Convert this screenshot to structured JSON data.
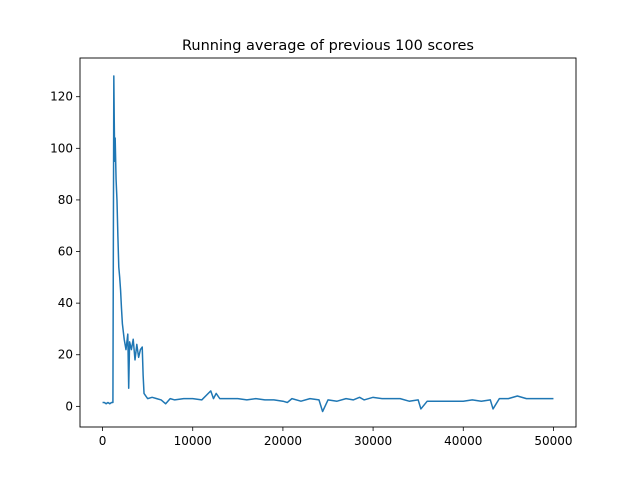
{
  "chart_data": {
    "type": "line",
    "title": "Running average of previous 100 scores",
    "xlabel": "",
    "ylabel": "",
    "xlim": [
      -2500,
      52500
    ],
    "ylim": [
      -8,
      135
    ],
    "x_ticks": [
      0,
      10000,
      20000,
      30000,
      40000,
      50000
    ],
    "x_tick_labels": [
      "0",
      "10000",
      "20000",
      "30000",
      "40000",
      "50000"
    ],
    "y_ticks": [
      0,
      20,
      40,
      60,
      80,
      100,
      120
    ],
    "y_tick_labels": [
      "0",
      "20",
      "40",
      "60",
      "80",
      "100",
      "120"
    ],
    "grid": false,
    "series": [
      {
        "color": "#1f77b4",
        "x": [
          0,
          200,
          400,
          600,
          800,
          1000,
          1150,
          1250,
          1300,
          1350,
          1400,
          1500,
          1600,
          1700,
          1800,
          1900,
          2000,
          2100,
          2200,
          2400,
          2600,
          2800,
          2900,
          3000,
          3200,
          3400,
          3600,
          3800,
          4000,
          4200,
          4400,
          4500,
          4600,
          4800,
          5000,
          5500,
          6000,
          6500,
          7000,
          7500,
          8000,
          9000,
          10000,
          11000,
          12000,
          12300,
          12600,
          13000,
          14000,
          15000,
          16000,
          17000,
          18000,
          19000,
          20000,
          20500,
          21000,
          22000,
          23000,
          24000,
          24400,
          25000,
          26000,
          27000,
          27800,
          28500,
          29000,
          30000,
          31000,
          32000,
          33000,
          34000,
          35000,
          35300,
          36000,
          37000,
          38000,
          39000,
          40000,
          41000,
          42000,
          43000,
          43300,
          44000,
          45000,
          46000,
          47000,
          48000,
          49000,
          50000
        ],
        "y": [
          1.5,
          1.5,
          1.0,
          1.5,
          1.0,
          1.5,
          1.5,
          128,
          110,
          95,
          104,
          88,
          80,
          66,
          54,
          50,
          45,
          38,
          32,
          26,
          22,
          28,
          7,
          25,
          22,
          26,
          18,
          24,
          19,
          22,
          23,
          12,
          5,
          4,
          3,
          3.5,
          3,
          2.5,
          1,
          3,
          2.5,
          3,
          3,
          2.5,
          6,
          3,
          5,
          3,
          3,
          3,
          2.5,
          3,
          2.5,
          2.5,
          2,
          1.5,
          3,
          2,
          3,
          2.5,
          -2,
          2.5,
          2,
          3,
          2.5,
          3.5,
          2.5,
          3.5,
          3,
          3,
          3,
          2,
          2.5,
          -1,
          2,
          2,
          2,
          2,
          2,
          2.5,
          2,
          2.5,
          -1,
          3,
          3,
          4,
          3,
          3,
          3,
          3
        ]
      }
    ]
  }
}
